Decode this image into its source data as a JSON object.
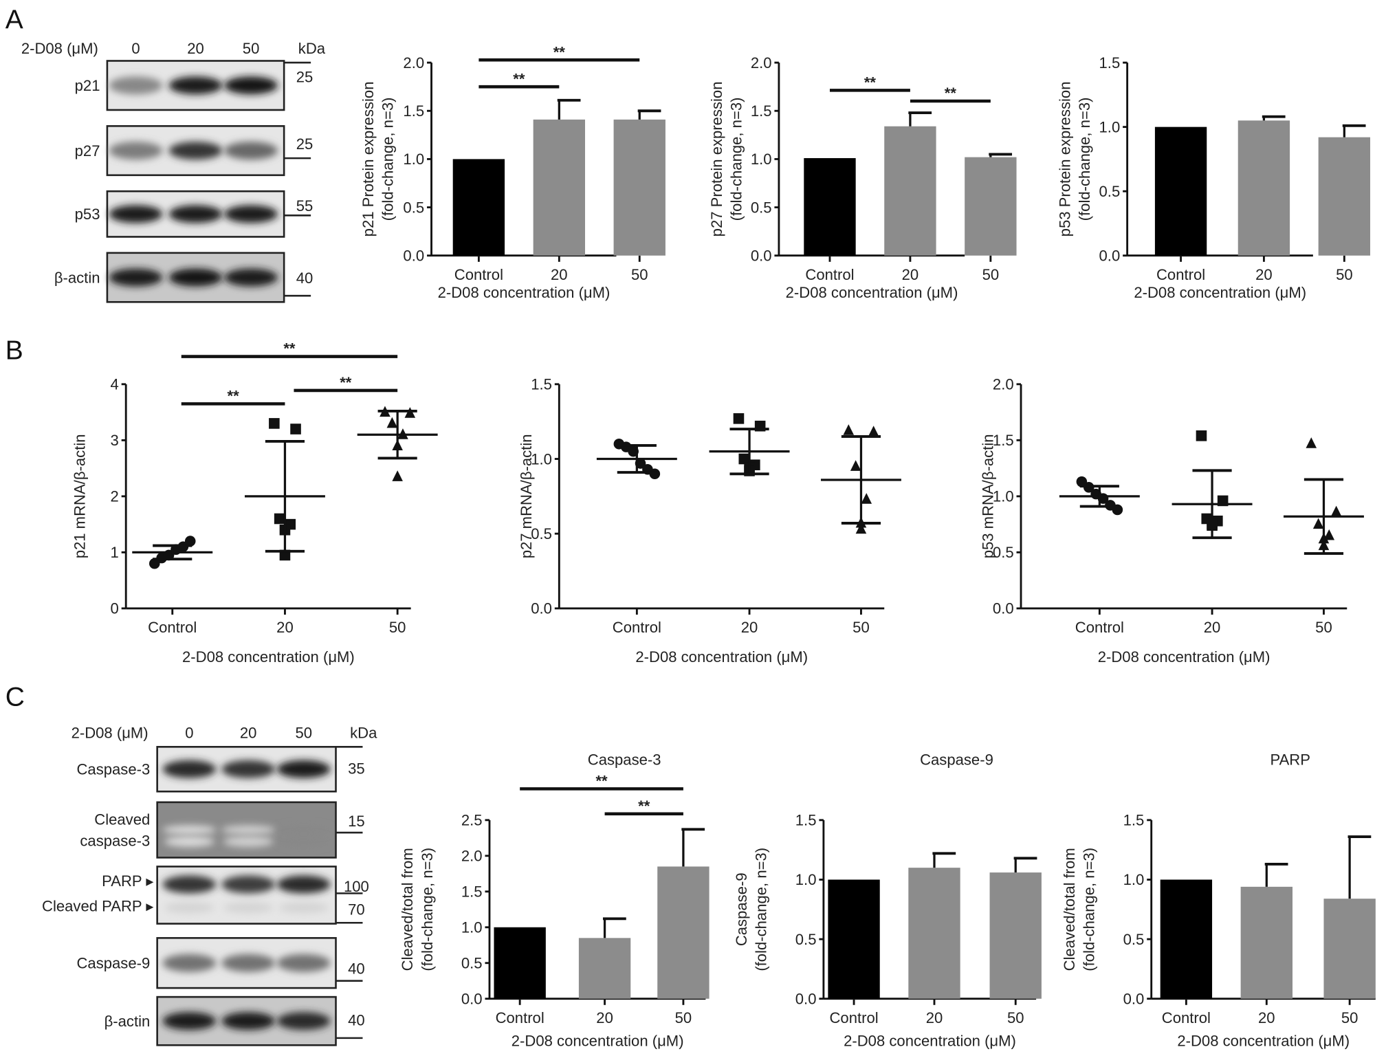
{
  "panels": [
    "A",
    "B",
    "C"
  ],
  "blots": [
    {
      "header": "2-D08 (μM)",
      "lanes": [
        "0",
        "20",
        "50"
      ],
      "unit": "kDa",
      "rows": [
        {
          "label": "p21",
          "kda": "25",
          "band_intensity": [
            0.45,
            0.95,
            1.0
          ]
        },
        {
          "label": "p27",
          "kda": "25",
          "band_intensity": [
            0.5,
            0.85,
            0.6
          ]
        },
        {
          "label": "p53",
          "kda": "55",
          "band_intensity": [
            0.95,
            0.95,
            0.95
          ]
        },
        {
          "label": "β-actin",
          "kda": "40",
          "band_intensity": [
            0.95,
            1.0,
            0.95
          ]
        }
      ]
    },
    {
      "header": "2-D08 (μM)",
      "lanes": [
        "0",
        "20",
        "50"
      ],
      "unit": "kDa",
      "rows": [
        {
          "label": "Caspase-3",
          "kda": "35",
          "band_intensity": [
            0.9,
            0.85,
            0.95
          ]
        },
        {
          "label": "Cleaved\ncaspase-3",
          "kda": "15",
          "band_intensity": [
            0.05,
            0.1,
            0.45
          ]
        },
        {
          "label": "PARP ▸",
          "label2": "Cleaved PARP ▸",
          "kda": "100",
          "kda2": "70",
          "band_intensity": [
            0.85,
            0.8,
            0.9
          ]
        },
        {
          "label": "Caspase-9",
          "kda": "40",
          "band_intensity": [
            0.55,
            0.55,
            0.55
          ]
        },
        {
          "label": "β-actin",
          "kda": "40",
          "band_intensity": [
            0.95,
            0.95,
            0.9
          ]
        }
      ]
    }
  ],
  "colors": {
    "control": "#000000",
    "treated": "#8c8c8c"
  },
  "chart_data": [
    {
      "type": "bar",
      "title": "",
      "categories": [
        "Control",
        "20",
        "50"
      ],
      "values": [
        1.0,
        1.41,
        1.41
      ],
      "errors": [
        0,
        0.2,
        0.09
      ],
      "ylabel": [
        "p21 Protein expression",
        "(fold-change, n=3)"
      ],
      "xlabel": "2-D08 concentration (μM)",
      "ylim": [
        0,
        2.0
      ],
      "yticks": [
        "0.0",
        "0.5",
        "1.0",
        "1.5",
        "2.0"
      ],
      "significance": [
        {
          "from": 0,
          "to": 2,
          "label": "**"
        },
        {
          "from": 0,
          "to": 1,
          "label": "**"
        }
      ]
    },
    {
      "type": "bar",
      "title": "",
      "categories": [
        "Control",
        "20",
        "50"
      ],
      "values": [
        1.01,
        1.34,
        1.02
      ],
      "errors": [
        0,
        0.14,
        0.03
      ],
      "ylabel": [
        "p27 Protein expression",
        "(fold-change, n=3)"
      ],
      "xlabel": "2-D08 concentration (μM)",
      "ylim": [
        0,
        2.0
      ],
      "yticks": [
        "0.0",
        "0.5",
        "1.0",
        "1.5",
        "2.0"
      ],
      "significance": [
        {
          "from": 0,
          "to": 1,
          "label": "**"
        },
        {
          "from": 1,
          "to": 2,
          "label": "**"
        }
      ]
    },
    {
      "type": "bar",
      "title": "",
      "categories": [
        "Control",
        "20",
        "50"
      ],
      "values": [
        1.0,
        1.05,
        0.92
      ],
      "errors": [
        0,
        0.03,
        0.09
      ],
      "ylabel": [
        "p53 Protein expression",
        "(fold-change, n=3)"
      ],
      "xlabel": "2-D08 concentration (μM)",
      "ylim": [
        0,
        1.5
      ],
      "yticks": [
        "0.0",
        "0.5",
        "1.0",
        "1.5"
      ],
      "significance": []
    },
    {
      "type": "scatter",
      "categories": [
        "Control",
        "20",
        "50"
      ],
      "points": [
        [
          0.8,
          0.9,
          0.95,
          1.05,
          1.1,
          1.2
        ],
        [
          3.3,
          3.2,
          1.6,
          1.5,
          1.4,
          0.95
        ],
        [
          3.5,
          3.48,
          3.3,
          3.1,
          2.9,
          2.35
        ]
      ],
      "means": [
        1.0,
        2.0,
        3.1
      ],
      "sd": [
        0.12,
        0.98,
        0.42
      ],
      "markers": [
        "circle",
        "square",
        "triangle"
      ],
      "ylabel": [
        "p21 mRNA/β-actin"
      ],
      "xlabel": "2-D08 concentration (μM)",
      "ylim": [
        0,
        4
      ],
      "yticks": [
        "0",
        "1",
        "2",
        "3",
        "4"
      ],
      "significance": [
        {
          "from": 0,
          "to": 2,
          "label": "**"
        },
        {
          "from": 0,
          "to": 1,
          "label": "**"
        },
        {
          "from": 1,
          "to": 2,
          "label": "**"
        }
      ]
    },
    {
      "type": "scatter",
      "categories": [
        "Control",
        "20",
        "50"
      ],
      "points": [
        [
          1.1,
          1.08,
          1.05,
          0.97,
          0.93,
          0.9
        ],
        [
          1.27,
          1.22,
          1.0,
          0.96,
          0.94,
          0.92
        ],
        [
          1.19,
          1.18,
          0.95,
          0.73,
          0.57,
          0.53
        ]
      ],
      "means": [
        1.0,
        1.05,
        0.86
      ],
      "sd": [
        0.09,
        0.15,
        0.29
      ],
      "markers": [
        "circle",
        "square",
        "triangle"
      ],
      "ylabel": [
        "p27 mRNA/β-actin"
      ],
      "xlabel": "2-D08 concentration (μM)",
      "ylim": [
        0,
        1.5
      ],
      "yticks": [
        "0.0",
        "0.5",
        "1.0",
        "1.5"
      ],
      "significance": []
    },
    {
      "type": "scatter",
      "categories": [
        "Control",
        "20",
        "50"
      ],
      "points": [
        [
          1.13,
          1.08,
          1.02,
          0.98,
          0.92,
          0.88
        ],
        [
          1.54,
          0.96,
          0.8,
          0.78,
          0.74,
          0.75
        ],
        [
          1.47,
          0.86,
          0.75,
          0.65,
          0.62,
          0.56
        ]
      ],
      "means": [
        1.0,
        0.93,
        0.82
      ],
      "sd": [
        0.09,
        0.3,
        0.33
      ],
      "markers": [
        "circle",
        "square",
        "triangle"
      ],
      "ylabel": [
        "p53 mRNA/β-actin"
      ],
      "xlabel": "2-D08 concentration (μM)",
      "ylim": [
        0,
        2.0
      ],
      "yticks": [
        "0.0",
        "0.5",
        "1.0",
        "1.5",
        "2.0"
      ],
      "significance": []
    },
    {
      "type": "bar",
      "title": "Caspase-3",
      "categories": [
        "Control",
        "20",
        "50"
      ],
      "values": [
        1.0,
        0.85,
        1.85
      ],
      "errors": [
        0,
        0.27,
        0.52
      ],
      "ylabel": [
        "Cleaved/total from",
        "(fold-change, n=3)"
      ],
      "xlabel": "2-D08 concentration (μM)",
      "ylim": [
        0,
        2.5
      ],
      "yticks": [
        "0.0",
        "0.5",
        "1.0",
        "1.5",
        "2.0",
        "2.5"
      ],
      "significance": [
        {
          "from": 0,
          "to": 2,
          "label": "**"
        },
        {
          "from": 1,
          "to": 2,
          "label": "**"
        }
      ]
    },
    {
      "type": "bar",
      "title": "Caspase-9",
      "categories": [
        "Control",
        "20",
        "50"
      ],
      "values": [
        1.0,
        1.1,
        1.06
      ],
      "errors": [
        0,
        0.12,
        0.12
      ],
      "ylabel": [
        "Caspase-9",
        "(fold-change, n=3)"
      ],
      "xlabel": "2-D08 concentration (μM)",
      "ylim": [
        0,
        1.5
      ],
      "yticks": [
        "0.0",
        "0.5",
        "1.0",
        "1.5"
      ],
      "significance": []
    },
    {
      "type": "bar",
      "title": "PARP",
      "categories": [
        "Control",
        "20",
        "50"
      ],
      "values": [
        1.0,
        0.94,
        0.84
      ],
      "errors": [
        0,
        0.19,
        0.52
      ],
      "ylabel": [
        "Cleaved/total from",
        "(fold-change, n=3)"
      ],
      "xlabel": "2-D08 concentration (μM)",
      "ylim": [
        0,
        1.5
      ],
      "yticks": [
        "0.0",
        "0.5",
        "1.0",
        "1.5"
      ],
      "significance": []
    }
  ]
}
